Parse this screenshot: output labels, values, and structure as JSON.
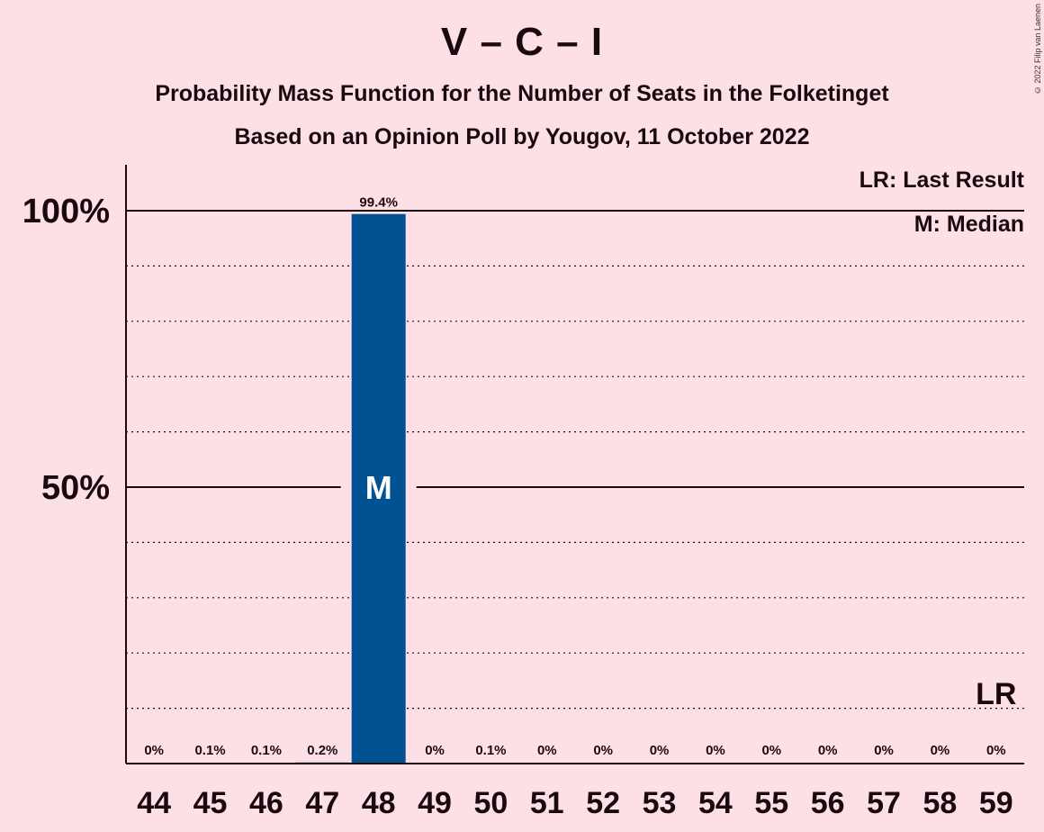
{
  "title": "V – C – I",
  "subtitle_1": "Probability Mass Function for the Number of Seats in the Folketinget",
  "subtitle_2": "Based on an Opinion Poll by Yougov, 11 October 2022",
  "copyright": "© 2022 Filip van Laenen",
  "legend": {
    "last_result": "LR: Last Result",
    "median": "M: Median"
  },
  "colors": {
    "background": "#fde0e6",
    "bar": "#005292",
    "text": "#1a0a0f"
  },
  "chart_data": {
    "type": "bar",
    "categories": [
      "44",
      "45",
      "46",
      "47",
      "48",
      "49",
      "50",
      "51",
      "52",
      "53",
      "54",
      "55",
      "56",
      "57",
      "58",
      "59"
    ],
    "values": [
      0,
      0.1,
      0.1,
      0.2,
      99.4,
      0,
      0.1,
      0,
      0,
      0,
      0,
      0,
      0,
      0,
      0,
      0
    ],
    "value_labels": [
      "0%",
      "0.1%",
      "0.1%",
      "0.2%",
      "99.4%",
      "0%",
      "0.1%",
      "0%",
      "0%",
      "0%",
      "0%",
      "0%",
      "0%",
      "0%",
      "0%",
      "0%"
    ],
    "ylim": [
      0,
      100
    ],
    "y_ticks": [
      {
        "value": 50,
        "label": "50%"
      },
      {
        "value": 100,
        "label": "100%"
      }
    ],
    "minor_gridlines": [
      10,
      20,
      30,
      40,
      60,
      70,
      80,
      90
    ],
    "median": {
      "category": "48",
      "marker": "M"
    },
    "last_result": {
      "category": "59",
      "marker": "LR"
    }
  }
}
